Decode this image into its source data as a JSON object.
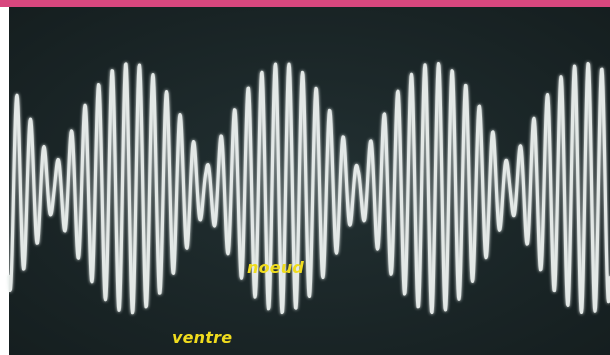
{
  "labels": {
    "node": "noeud",
    "antinode": "ventre"
  },
  "colors": {
    "screen_background": "#1a2526",
    "trace": "#f2f5f3",
    "label_text": "#f0dc1e",
    "top_border": "#d8477e"
  }
}
